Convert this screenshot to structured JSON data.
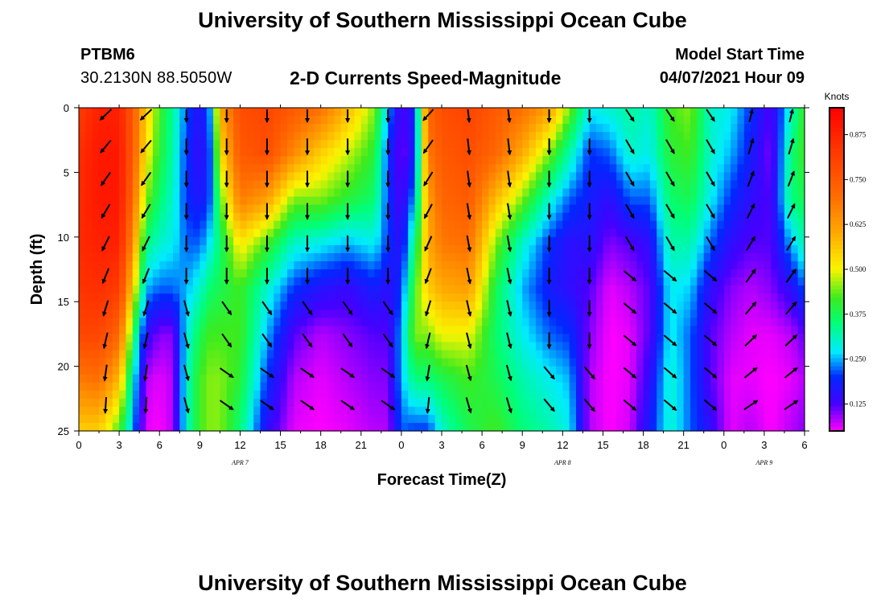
{
  "header": {
    "title": "University of Southern Mississippi Ocean Cube",
    "station": "PTBM6",
    "coords": "30.2130N  88.5050W",
    "model_label": "Model Start Time",
    "model_time": "04/07/2021 Hour 09"
  },
  "footer": {
    "title": "University of Southern Mississippi Ocean Cube"
  },
  "chart_data": {
    "type": "heatmap",
    "title": "2-D Currents Speed-Magnitude",
    "xlabel": "Forecast Time(Z)",
    "ylabel": "Depth (ft)",
    "x_ticks": [
      "0",
      "3",
      "6",
      "9",
      "12",
      "15",
      "18",
      "21",
      "0",
      "3",
      "6",
      "9",
      "12",
      "15",
      "18",
      "21",
      "0",
      "3",
      "6"
    ],
    "x_range_hours": [
      0,
      54
    ],
    "day_labels": [
      {
        "label": "APR 7",
        "hour": 12
      },
      {
        "label": "APR 8",
        "hour": 36
      },
      {
        "label": "APR 9",
        "hour": 51
      }
    ],
    "y_ticks": [
      "0",
      "5",
      "10",
      "15",
      "20",
      "25"
    ],
    "y_range": [
      0,
      25
    ],
    "y_inverted": true,
    "colorbar": {
      "title": "Knots",
      "range": [
        0.05,
        0.95
      ],
      "ticks": [
        {
          "label": "0.125",
          "value": 0.125
        },
        {
          "label": "0.250",
          "value": 0.25
        },
        {
          "label": "0.375",
          "value": 0.375
        },
        {
          "label": "0.500",
          "value": 0.5
        },
        {
          "label": "0.625",
          "value": 0.625
        },
        {
          "label": "0.750",
          "value": 0.75
        },
        {
          "label": "0.875",
          "value": 0.875
        }
      ]
    },
    "speed_profile": [
      {
        "hour": 0,
        "v": [
          0.82,
          0.85,
          0.86,
          0.86,
          0.84,
          0.8,
          0.68,
          0.55
        ]
      },
      {
        "hour": 1.5,
        "v": [
          0.88,
          0.9,
          0.9,
          0.88,
          0.85,
          0.8,
          0.7,
          0.55
        ]
      },
      {
        "hour": 3,
        "v": [
          0.88,
          0.9,
          0.9,
          0.88,
          0.82,
          0.72,
          0.58,
          0.42
        ]
      },
      {
        "hour": 4,
        "v": [
          0.75,
          0.75,
          0.72,
          0.65,
          0.55,
          0.4,
          0.3,
          0.25
        ]
      },
      {
        "hour": 5,
        "v": [
          0.55,
          0.52,
          0.45,
          0.35,
          0.25,
          0.15,
          0.08,
          0.06
        ]
      },
      {
        "hour": 6,
        "v": [
          0.42,
          0.4,
          0.36,
          0.3,
          0.22,
          0.1,
          0.06,
          0.05
        ]
      },
      {
        "hour": 7,
        "v": [
          0.33,
          0.32,
          0.3,
          0.28,
          0.22,
          0.1,
          0.08,
          0.08
        ]
      },
      {
        "hour": 8,
        "v": [
          0.22,
          0.2,
          0.2,
          0.22,
          0.25,
          0.28,
          0.3,
          0.3
        ]
      },
      {
        "hour": 9,
        "v": [
          0.15,
          0.14,
          0.16,
          0.22,
          0.3,
          0.38,
          0.42,
          0.42
        ]
      },
      {
        "hour": 9.8,
        "v": [
          0.25,
          0.22,
          0.22,
          0.28,
          0.36,
          0.42,
          0.45,
          0.45
        ]
      },
      {
        "hour": 10.5,
        "v": [
          0.6,
          0.52,
          0.42,
          0.36,
          0.38,
          0.42,
          0.45,
          0.45
        ]
      },
      {
        "hour": 12,
        "v": [
          0.78,
          0.75,
          0.68,
          0.52,
          0.42,
          0.42,
          0.4,
          0.35
        ]
      },
      {
        "hour": 14,
        "v": [
          0.8,
          0.78,
          0.62,
          0.42,
          0.3,
          0.25,
          0.2,
          0.15
        ]
      },
      {
        "hour": 16,
        "v": [
          0.75,
          0.65,
          0.45,
          0.3,
          0.2,
          0.12,
          0.08,
          0.06
        ]
      },
      {
        "hour": 18,
        "v": [
          0.7,
          0.55,
          0.45,
          0.28,
          0.16,
          0.08,
          0.06,
          0.05
        ]
      },
      {
        "hour": 20,
        "v": [
          0.58,
          0.48,
          0.4,
          0.25,
          0.14,
          0.1,
          0.08,
          0.06
        ]
      },
      {
        "hour": 22,
        "v": [
          0.45,
          0.4,
          0.36,
          0.28,
          0.18,
          0.12,
          0.1,
          0.08
        ]
      },
      {
        "hour": 23,
        "v": [
          0.25,
          0.2,
          0.2,
          0.2,
          0.15,
          0.12,
          0.1,
          0.08
        ]
      },
      {
        "hour": 24,
        "v": [
          0.12,
          0.1,
          0.12,
          0.15,
          0.2,
          0.25,
          0.25,
          0.22
        ]
      },
      {
        "hour": 25,
        "v": [
          0.18,
          0.18,
          0.25,
          0.35,
          0.42,
          0.45,
          0.35,
          0.2
        ]
      },
      {
        "hour": 26,
        "v": [
          0.72,
          0.68,
          0.62,
          0.6,
          0.55,
          0.45,
          0.35,
          0.2
        ]
      },
      {
        "hour": 27,
        "v": [
          0.78,
          0.75,
          0.72,
          0.68,
          0.6,
          0.5,
          0.38,
          0.3
        ]
      },
      {
        "hour": 29,
        "v": [
          0.8,
          0.78,
          0.75,
          0.7,
          0.62,
          0.5,
          0.42,
          0.38
        ]
      },
      {
        "hour": 31,
        "v": [
          0.75,
          0.72,
          0.58,
          0.45,
          0.38,
          0.36,
          0.38,
          0.42
        ]
      },
      {
        "hour": 33,
        "v": [
          0.7,
          0.6,
          0.45,
          0.3,
          0.25,
          0.28,
          0.32,
          0.35
        ]
      },
      {
        "hour": 35,
        "v": [
          0.62,
          0.45,
          0.3,
          0.2,
          0.18,
          0.22,
          0.28,
          0.32
        ]
      },
      {
        "hour": 36.5,
        "v": [
          0.45,
          0.32,
          0.22,
          0.15,
          0.15,
          0.2,
          0.25,
          0.28
        ]
      },
      {
        "hour": 38,
        "v": [
          0.28,
          0.2,
          0.18,
          0.16,
          0.12,
          0.1,
          0.08,
          0.08
        ]
      },
      {
        "hour": 39.5,
        "v": [
          0.3,
          0.22,
          0.15,
          0.1,
          0.06,
          0.05,
          0.05,
          0.05
        ]
      },
      {
        "hour": 41,
        "v": [
          0.33,
          0.3,
          0.22,
          0.12,
          0.08,
          0.06,
          0.06,
          0.07
        ]
      },
      {
        "hour": 42.5,
        "v": [
          0.3,
          0.28,
          0.22,
          0.15,
          0.12,
          0.12,
          0.15,
          0.18
        ]
      },
      {
        "hour": 44,
        "v": [
          0.42,
          0.4,
          0.36,
          0.32,
          0.28,
          0.28,
          0.3,
          0.3
        ]
      },
      {
        "hour": 45.5,
        "v": [
          0.45,
          0.42,
          0.38,
          0.32,
          0.26,
          0.22,
          0.22,
          0.22
        ]
      },
      {
        "hour": 47,
        "v": [
          0.3,
          0.3,
          0.28,
          0.22,
          0.15,
          0.12,
          0.12,
          0.15
        ]
      },
      {
        "hour": 48.5,
        "v": [
          0.28,
          0.25,
          0.2,
          0.15,
          0.1,
          0.08,
          0.06,
          0.06
        ]
      },
      {
        "hour": 50,
        "v": [
          0.2,
          0.18,
          0.15,
          0.12,
          0.08,
          0.06,
          0.06,
          0.08
        ]
      },
      {
        "hour": 51.5,
        "v": [
          0.12,
          0.1,
          0.12,
          0.12,
          0.1,
          0.06,
          0.05,
          0.05
        ]
      },
      {
        "hour": 53,
        "v": [
          0.3,
          0.35,
          0.35,
          0.25,
          0.15,
          0.08,
          0.06,
          0.08
        ]
      },
      {
        "hour": 54,
        "v": [
          0.42,
          0.42,
          0.38,
          0.32,
          0.22,
          0.12,
          0.08,
          0.1
        ]
      }
    ],
    "profile_depths_ft": [
      0,
      3.5,
      7,
      10.5,
      14,
      17.5,
      21,
      25
    ]
  }
}
